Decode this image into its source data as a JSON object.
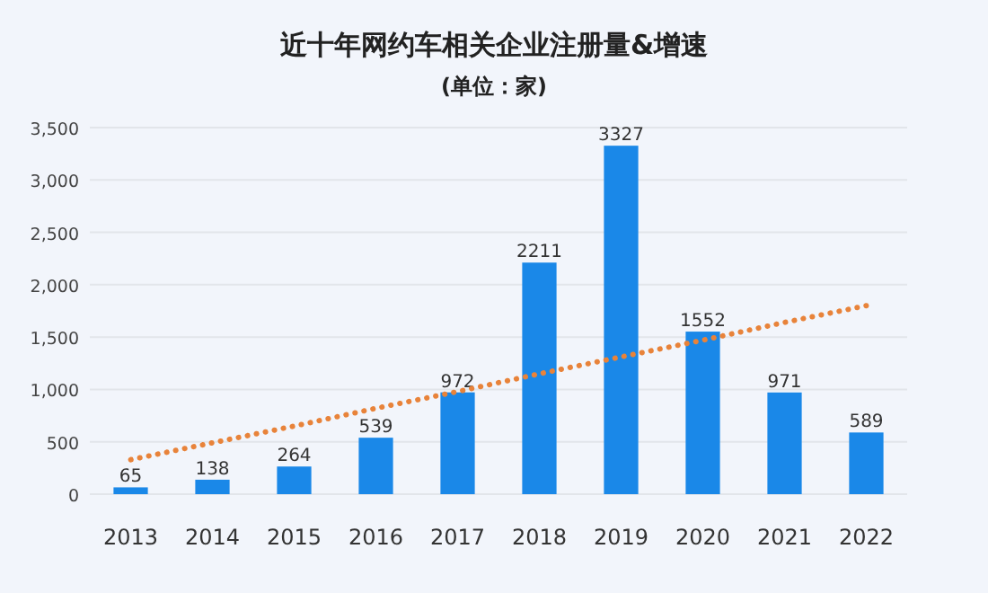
{
  "chart_data": {
    "type": "bar",
    "title": "近十年网约车相关企业注册量&增速",
    "subtitle": "(单位：家)",
    "categories": [
      "2013",
      "2014",
      "2015",
      "2016",
      "2017",
      "2018",
      "2019",
      "2020",
      "2021",
      "2022"
    ],
    "series": [
      {
        "color": "#1a88e8",
        "values": [
          65,
          138,
          264,
          539,
          972,
          2211,
          3327,
          1552,
          971,
          589
        ],
        "value_labels": [
          "65",
          "138",
          "264",
          "539",
          "972",
          "2211",
          "3327",
          "1552",
          "971",
          "589"
        ]
      },
      {
        "type": "line",
        "color": "#e8833a",
        "line_style": "dotted",
        "values": [
          330,
          490,
          650,
          820,
          980,
          1150,
          1310,
          1470,
          1640,
          1800
        ]
      }
    ],
    "ylim": [
      0,
      3500
    ],
    "yticks": [
      {
        "value": 0,
        "label": "0"
      },
      {
        "value": 500,
        "label": "500"
      },
      {
        "value": 1000,
        "label": "1,000"
      },
      {
        "value": 1500,
        "label": "1,500"
      },
      {
        "value": 2000,
        "label": "2,000"
      },
      {
        "value": 2500,
        "label": "2,500"
      },
      {
        "value": 3000,
        "label": "3,000"
      },
      {
        "value": 3500,
        "label": "3,500"
      }
    ],
    "grid": "y"
  }
}
